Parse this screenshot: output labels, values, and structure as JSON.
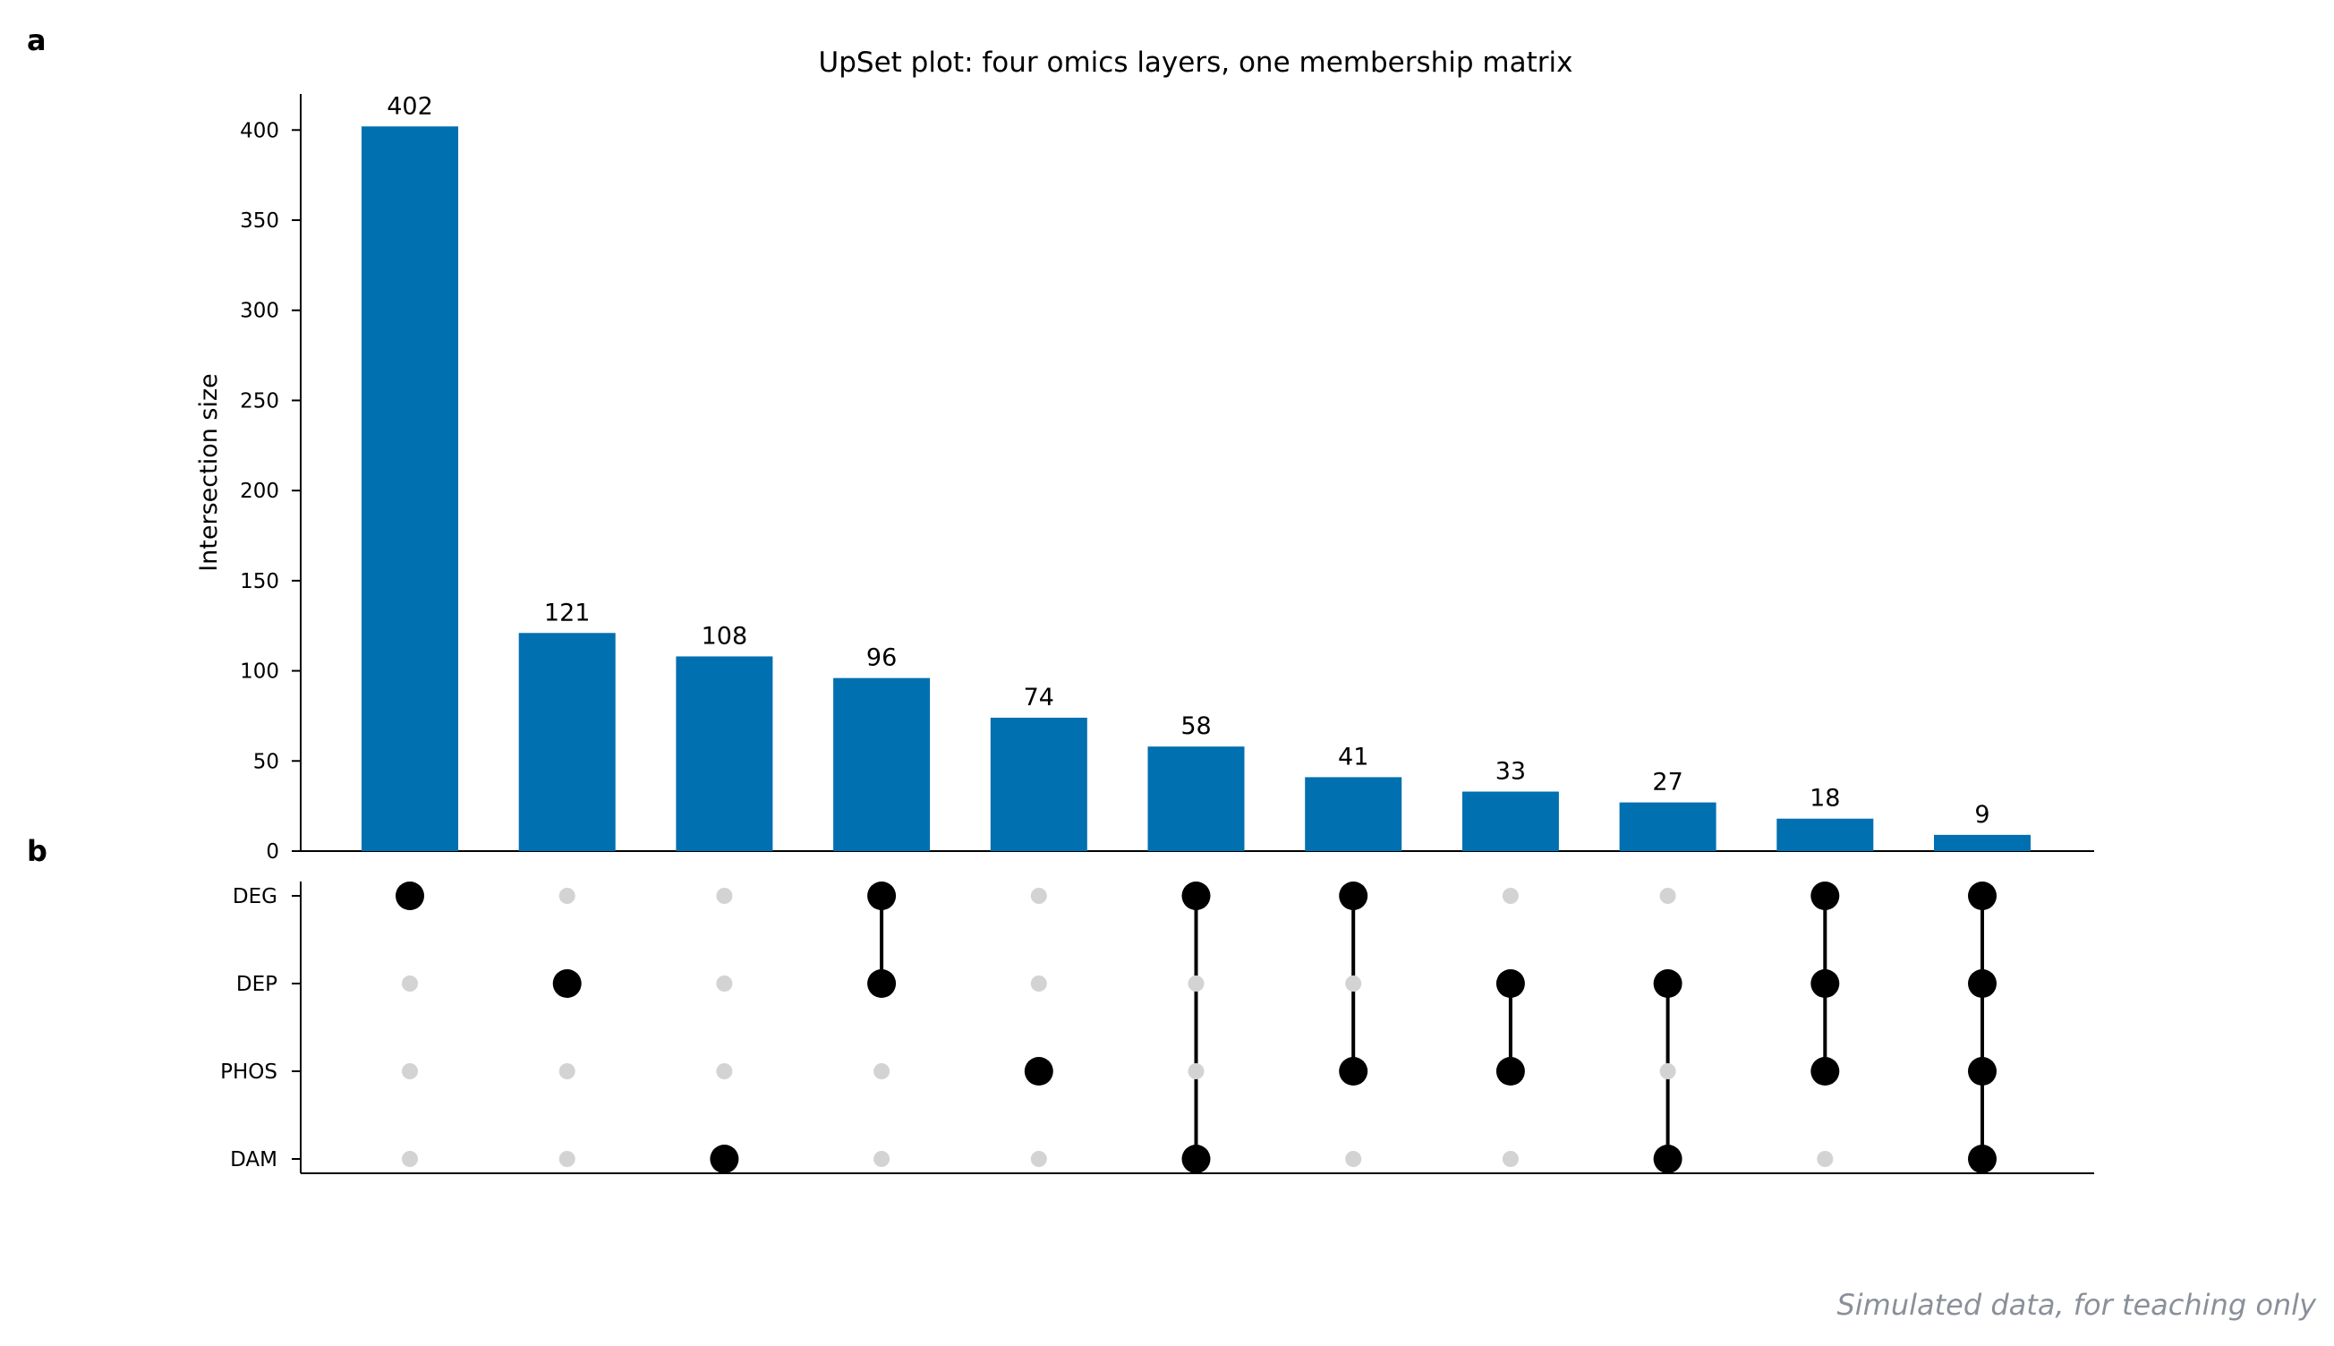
{
  "panel_labels": [
    "a",
    "b"
  ],
  "watermark": "Simulated data, for teaching only",
  "colors": {
    "bar": "#0070b0",
    "active_dot": "#000000",
    "inactive_dot": "#d3d3d3",
    "axis": "#000000"
  },
  "chart_data": [
    {
      "type": "bar",
      "panel": "a",
      "title": "UpSet plot: four omics layers, one membership matrix",
      "ylabel": "Intersection size",
      "xlabel": "",
      "ylim": [
        0,
        420
      ],
      "yticks": [
        0,
        50,
        100,
        150,
        200,
        250,
        300,
        350,
        400
      ],
      "values": [
        402,
        121,
        108,
        96,
        74,
        58,
        41,
        33,
        27,
        18,
        9
      ],
      "grid": false,
      "data_labels": true
    },
    {
      "type": "matrix",
      "panel": "b",
      "sets": [
        "DEG",
        "DEP",
        "PHOS",
        "DAM"
      ],
      "intersections": [
        [
          "DEG"
        ],
        [
          "DEP"
        ],
        [
          "DAM"
        ],
        [
          "DEG",
          "DEP"
        ],
        [
          "PHOS"
        ],
        [
          "DEG",
          "DAM"
        ],
        [
          "DEG",
          "PHOS"
        ],
        [
          "DEP",
          "PHOS"
        ],
        [
          "DEP",
          "DAM"
        ],
        [
          "DEG",
          "DEP",
          "PHOS"
        ],
        [
          "DEG",
          "DEP",
          "PHOS",
          "DAM"
        ]
      ]
    }
  ]
}
